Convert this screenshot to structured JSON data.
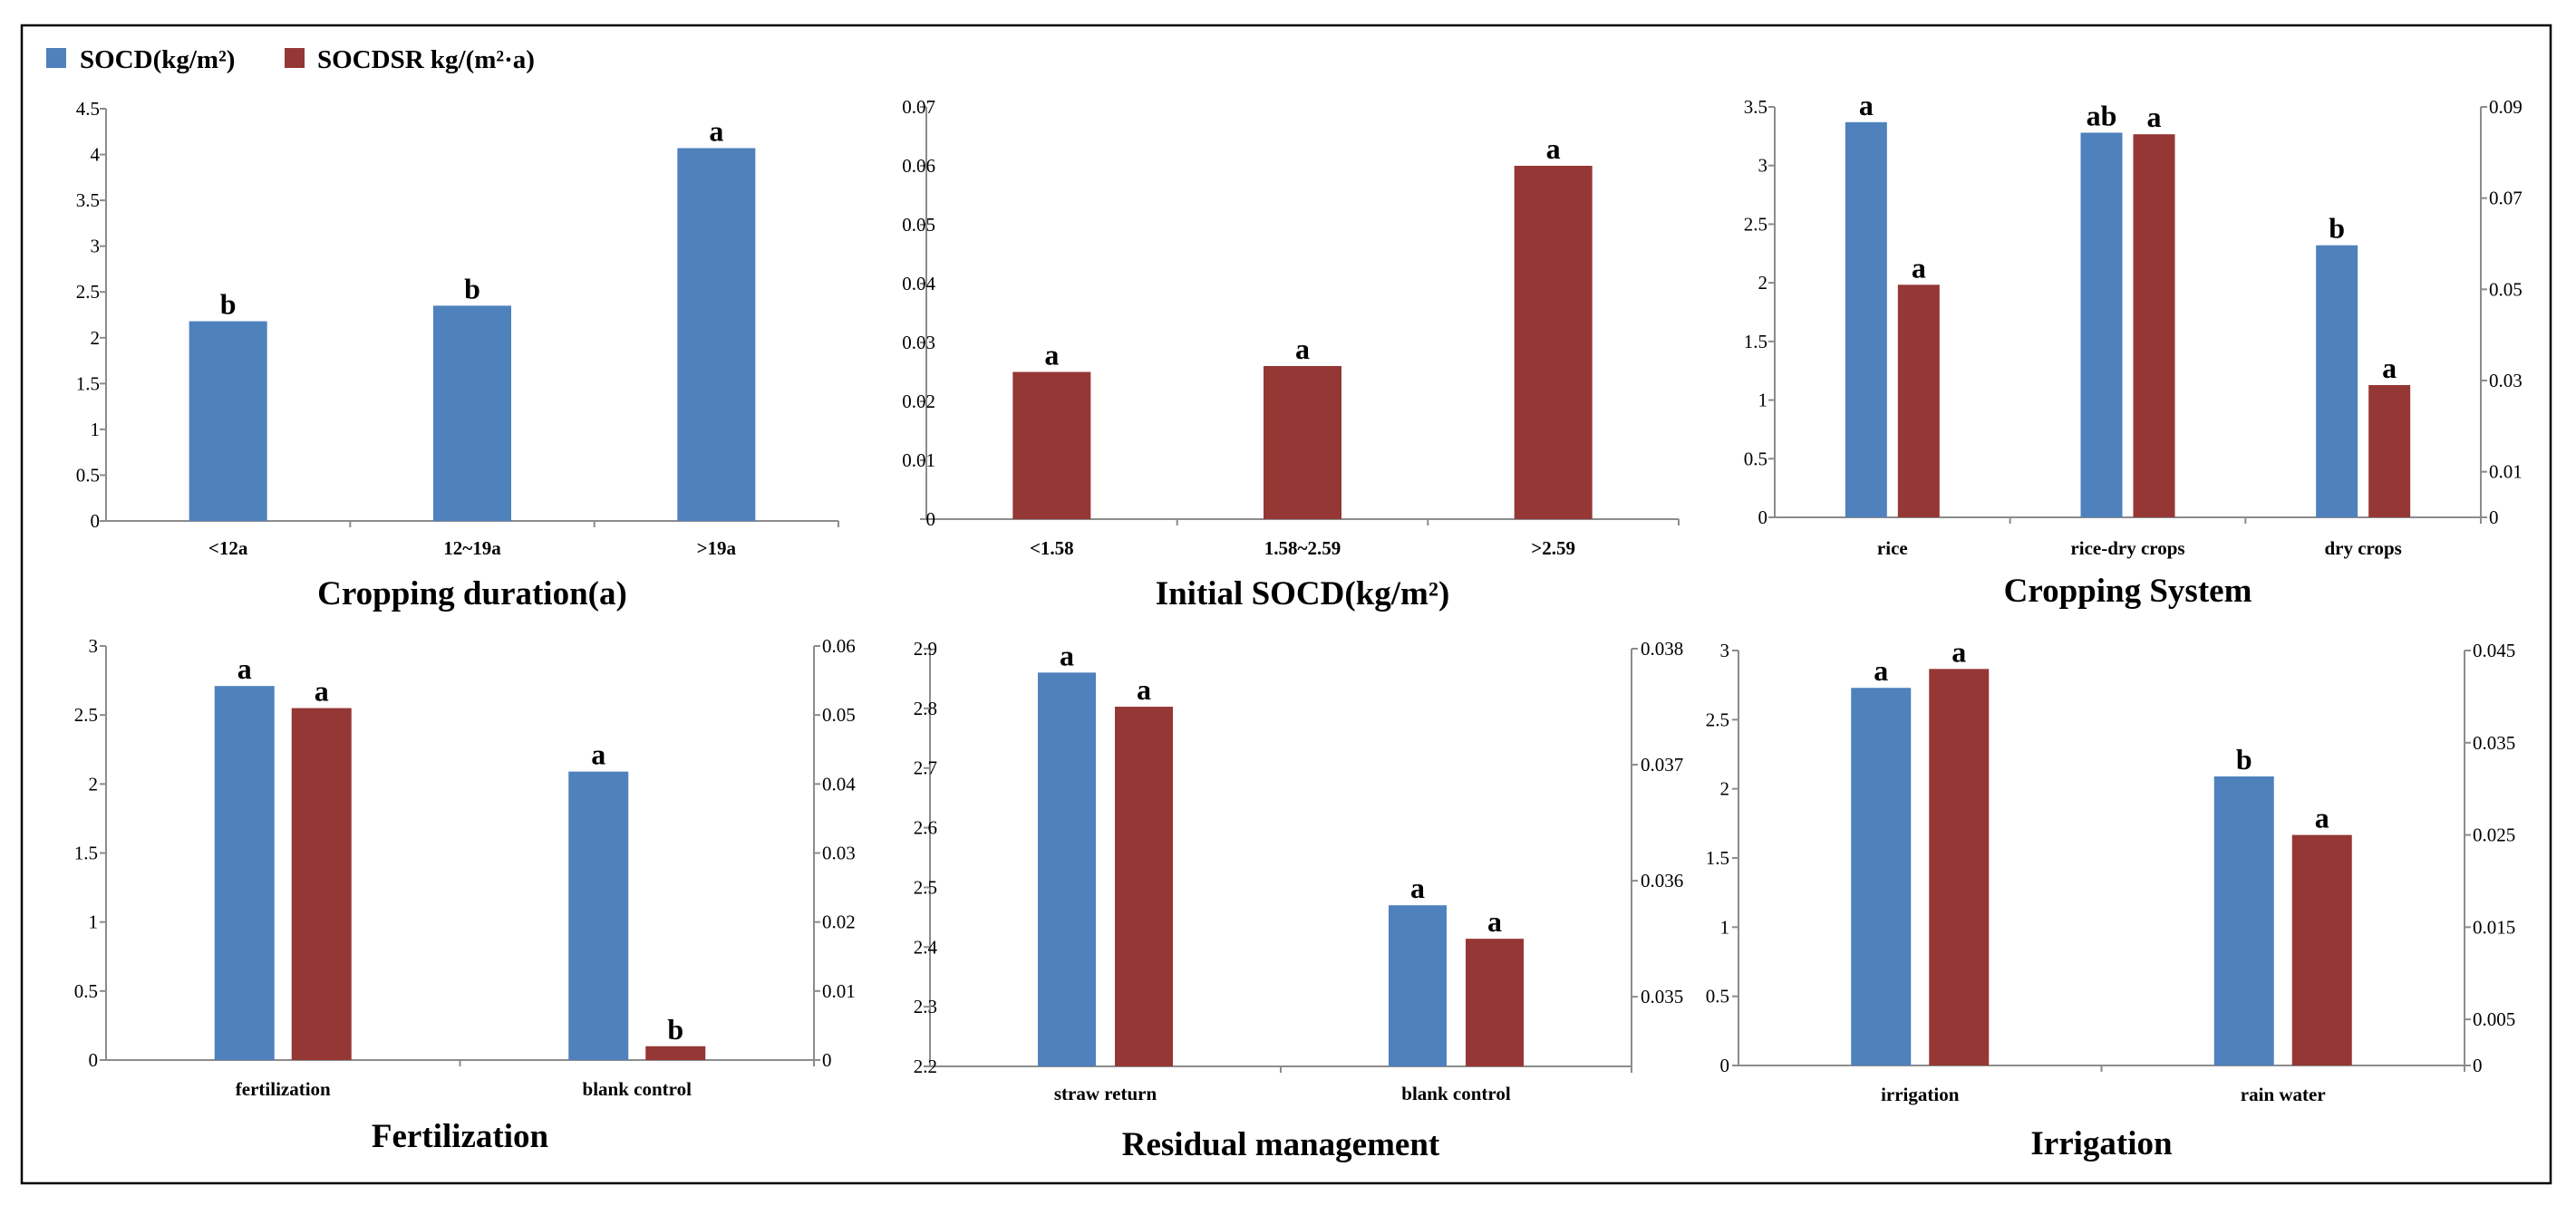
{
  "legend": {
    "items": [
      {
        "label": "SOCD(kg/m²)",
        "color": "#4F81BD"
      },
      {
        "label": "SOCDSR kg/(m²·a)",
        "color": "#953735"
      }
    ]
  },
  "chart_data": [
    {
      "type": "bar",
      "title": "Cropping duration(a)",
      "categories": [
        "<12a",
        "12~19a",
        ">19a"
      ],
      "series": [
        {
          "name": "SOCD(kg/m²)",
          "axis": "left",
          "values": [
            2.18,
            2.35,
            4.07
          ],
          "labels": [
            "b",
            "b",
            "a"
          ]
        }
      ],
      "ylim": [
        0,
        4.5
      ],
      "yticks": [
        "0",
        "0.5",
        "1",
        "1.5",
        "2",
        "2.5",
        "3",
        "3.5",
        "4",
        "4.5"
      ]
    },
    {
      "type": "bar",
      "title": "Initial SOCD(kg/m²)",
      "categories": [
        "<1.58",
        "1.58~2.59",
        ">2.59"
      ],
      "series": [
        {
          "name": "SOCDSR kg/(m²·a)",
          "axis": "left",
          "values": [
            0.025,
            0.026,
            0.06
          ],
          "labels": [
            "a",
            "a",
            "a"
          ]
        }
      ],
      "ylim": [
        0,
        0.07
      ],
      "yticks": [
        "0",
        "0.01",
        "0.02",
        "0.03",
        "0.04",
        "0.05",
        "0.06",
        "0.07"
      ]
    },
    {
      "type": "bar",
      "title": "Cropping System",
      "categories": [
        "rice",
        "rice-dry crops",
        "dry crops"
      ],
      "series": [
        {
          "name": "SOCD(kg/m²)",
          "axis": "left",
          "values": [
            3.37,
            3.28,
            2.32
          ],
          "labels": [
            "a",
            "ab",
            "b"
          ]
        },
        {
          "name": "SOCDSR kg/(m²·a)",
          "axis": "right",
          "values": [
            0.051,
            0.084,
            0.029
          ],
          "labels": [
            "a",
            "a",
            "a"
          ]
        }
      ],
      "ylim": [
        0,
        3.5
      ],
      "yticks": [
        "0",
        "0.5",
        "1",
        "1.5",
        "2",
        "2.5",
        "3",
        "3.5"
      ],
      "y2lim": [
        0,
        0.09
      ],
      "y2ticks": [
        "0",
        "0.01",
        "0.03",
        "0.05",
        "0.07",
        "0.09"
      ],
      "y2tickvalues": [
        0,
        0.01,
        0.03,
        0.05,
        0.07,
        0.09
      ]
    },
    {
      "type": "bar",
      "title": "Fertilization",
      "categories": [
        "fertilization",
        "blank control"
      ],
      "series": [
        {
          "name": "SOCD(kg/m²)",
          "axis": "left",
          "values": [
            2.71,
            2.09
          ],
          "labels": [
            "a",
            "a"
          ]
        },
        {
          "name": "SOCDSR kg/(m²·a)",
          "axis": "right",
          "values": [
            0.051,
            0.002
          ],
          "labels": [
            "a",
            "b"
          ]
        }
      ],
      "ylim": [
        0,
        3
      ],
      "yticks": [
        "0",
        "0.5",
        "1",
        "1.5",
        "2",
        "2.5",
        "3"
      ],
      "y2lim": [
        0,
        0.06
      ],
      "y2ticks": [
        "0",
        "0.01",
        "0.02",
        "0.03",
        "0.04",
        "0.05",
        "0.06"
      ],
      "y2tickvalues": [
        0,
        0.01,
        0.02,
        0.03,
        0.04,
        0.05,
        0.06
      ]
    },
    {
      "type": "bar",
      "title": "Residual management",
      "categories": [
        "straw return",
        "blank control"
      ],
      "series": [
        {
          "name": "SOCD(kg/m²)",
          "axis": "left",
          "values": [
            2.86,
            2.47
          ],
          "labels": [
            "a",
            "a"
          ]
        },
        {
          "name": "SOCDSR kg/(m²·a)",
          "axis": "right",
          "values": [
            0.0375,
            0.0355
          ],
          "labels": [
            "a",
            "a"
          ]
        }
      ],
      "ylim": [
        2.2,
        2.9
      ],
      "yticks": [
        "2.2",
        "2.3",
        "2.4",
        "2.5",
        "2.6",
        "2.7",
        "2.8",
        "2.9"
      ],
      "y2lim": [
        0.0344,
        0.038
      ],
      "y2ticks": [
        "0.035",
        "0.036",
        "0.037",
        "0.038"
      ],
      "y2tickvalues": [
        0.035,
        0.036,
        0.037,
        0.038
      ]
    },
    {
      "type": "bar",
      "title": "Irrigation",
      "categories": [
        "irrigation",
        "rain water"
      ],
      "series": [
        {
          "name": "SOCD(kg/m²)",
          "axis": "left",
          "values": [
            2.73,
            2.09
          ],
          "labels": [
            "a",
            "b"
          ]
        },
        {
          "name": "SOCDSR kg/(m²·a)",
          "axis": "right",
          "values": [
            0.043,
            0.025
          ],
          "labels": [
            "a",
            "a"
          ]
        }
      ],
      "ylim": [
        0,
        3
      ],
      "yticks": [
        "0",
        "0.5",
        "1",
        "1.5",
        "2",
        "2.5",
        "3"
      ],
      "y2lim": [
        0,
        0.045
      ],
      "y2ticks": [
        "0",
        "0.005",
        "0.015",
        "0.025",
        "0.035",
        "0.045"
      ],
      "y2tickvalues": [
        0,
        0.005,
        0.015,
        0.025,
        0.035,
        0.045
      ]
    }
  ]
}
